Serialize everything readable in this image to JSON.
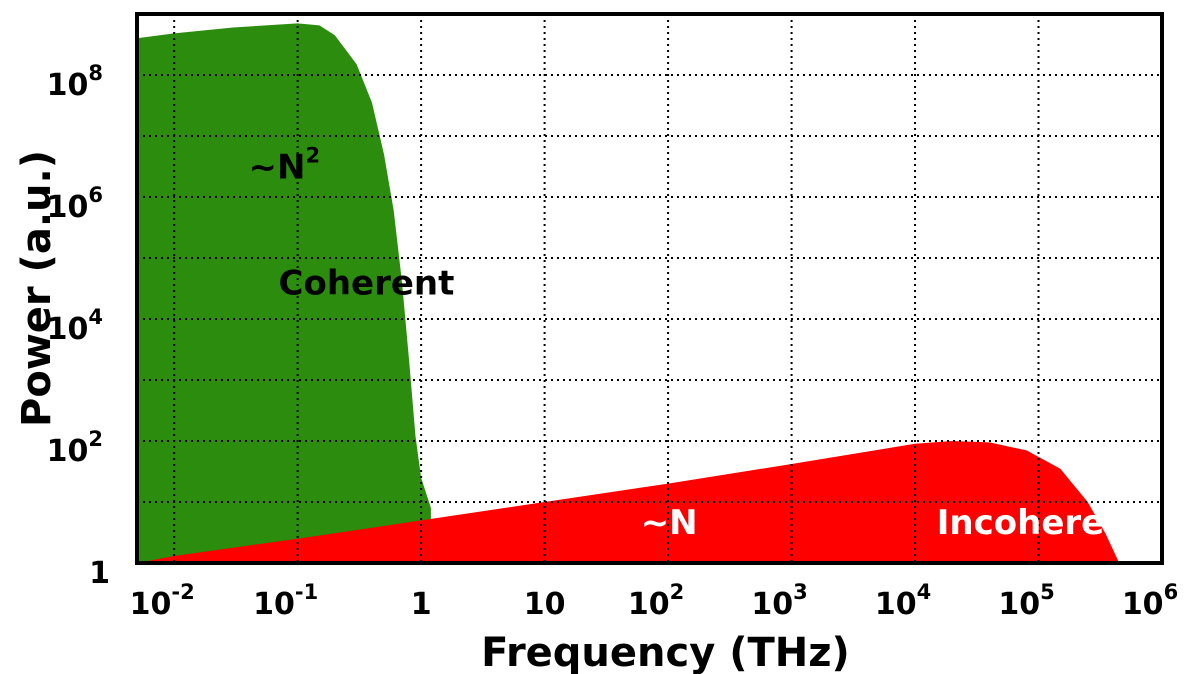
{
  "chart_data": {
    "type": "area",
    "xlabel": "Frequency (THz)",
    "ylabel": "Power (a.u.)",
    "x_scale": "log",
    "y_scale": "log",
    "xlim": [
      0.005,
      1000000
    ],
    "ylim": [
      1,
      1000000000
    ],
    "grid": true,
    "x_ticks": [
      {
        "base": "10",
        "exp": "-2"
      },
      {
        "base": "10",
        "exp": "-1"
      },
      {
        "base": "1",
        "exp": ""
      },
      {
        "base": "10",
        "exp": ""
      },
      {
        "base": "10",
        "exp": "2"
      },
      {
        "base": "10",
        "exp": "3"
      },
      {
        "base": "10",
        "exp": "4"
      },
      {
        "base": "10",
        "exp": "5"
      },
      {
        "base": "10",
        "exp": "6"
      }
    ],
    "x_tick_values": [
      0.01,
      0.1,
      1,
      10,
      100,
      1000,
      10000,
      100000,
      1000000
    ],
    "y_ticks": [
      {
        "base": "1",
        "exp": ""
      },
      {
        "base": "10",
        "exp": "2"
      },
      {
        "base": "10",
        "exp": "4"
      },
      {
        "base": "10",
        "exp": "6"
      },
      {
        "base": "10",
        "exp": "8"
      }
    ],
    "y_tick_values": [
      1,
      100,
      10000,
      1000000,
      100000000
    ],
    "y_grid_values": [
      1,
      10,
      100,
      1000,
      10000,
      100000,
      1000000,
      10000000,
      100000000,
      1000000000
    ],
    "series": [
      {
        "color": "#2b8c0e",
        "x": [
          0.005,
          0.01,
          0.03,
          0.1,
          0.15,
          0.2,
          0.3,
          0.4,
          0.5,
          0.6,
          0.7,
          0.8,
          0.9,
          1.0,
          1.2
        ],
        "y": [
          400000000,
          480000000,
          600000000,
          700000000,
          650000000,
          450000000,
          150000000,
          35000000,
          5000000,
          600000,
          40000,
          2000,
          120,
          25,
          8
        ]
      },
      {
        "color": "#ff0000",
        "x": [
          0.005,
          0.01,
          0.1,
          1,
          10,
          100,
          1000,
          10000,
          20000,
          40000,
          80000,
          150000,
          250000,
          350000,
          450000
        ],
        "y": [
          1,
          1.3,
          2.5,
          5,
          10,
          20,
          42,
          90,
          100,
          95,
          70,
          35,
          10,
          3,
          1
        ]
      }
    ],
    "annotations": [
      {
        "text": "~N",
        "sup": "2",
        "x": 0.04,
        "y": 2000000,
        "color": "#000000"
      },
      {
        "text": "Coherent",
        "x": 0.07,
        "y": 25000,
        "color": "#000000"
      },
      {
        "text": "~N",
        "x": 60,
        "y": 3,
        "color": "#ffffff"
      },
      {
        "text": "Incoherent",
        "x": 15000,
        "y": 3,
        "color": "#ffffff"
      }
    ]
  }
}
